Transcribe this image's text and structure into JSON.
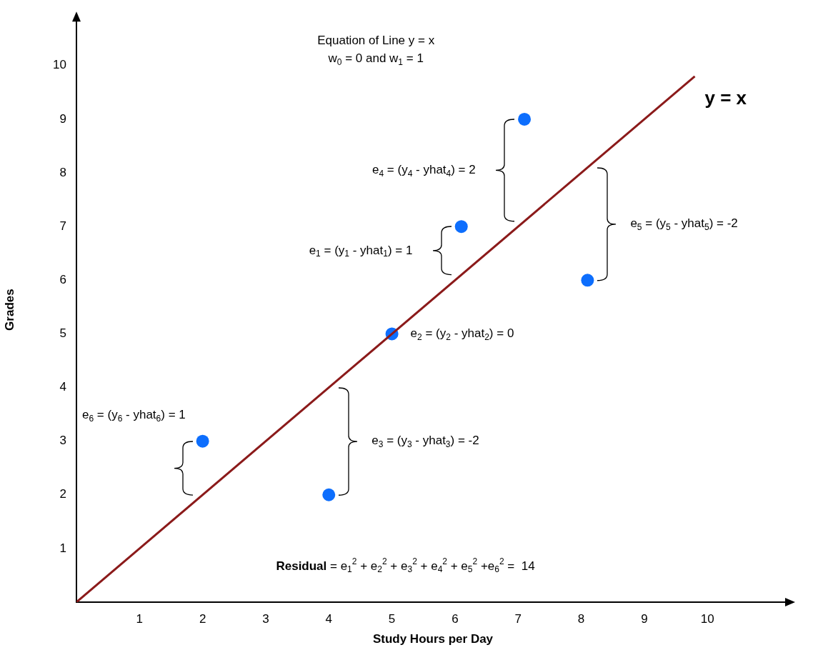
{
  "chart_data": {
    "type": "scatter",
    "title": "Equation of Line y = x",
    "subtitle": "w$_{0}$ = 0 and w$_{1}$ = 1",
    "xlabel": "Study Hours per Day",
    "ylabel": "Grades",
    "xlim": [
      0,
      11.3
    ],
    "ylim": [
      0,
      10.9
    ],
    "xticks": [
      1,
      2,
      3,
      4,
      5,
      6,
      7,
      8,
      9,
      10
    ],
    "yticks": [
      1,
      2,
      3,
      4,
      5,
      6,
      7,
      8,
      9,
      10
    ],
    "grid": false,
    "legend": false,
    "series": [
      {
        "name": "y = x",
        "type": "line",
        "x": [
          0,
          9.8
        ],
        "values": [
          0,
          9.8
        ],
        "color": "#8b1a1a",
        "line_style": "solid"
      },
      {
        "x": [
          6.1,
          5,
          4,
          7.1,
          8.1,
          2
        ],
        "values": [
          7,
          5,
          2,
          9,
          6,
          3
        ],
        "color": "#0d6efd",
        "marker": "circle"
      }
    ],
    "annotations": [
      "e$_{1}$ = (y$_{1}$ - yhat$_{1}$) = 1",
      "e$_{2}$ = (y$_{2}$ - yhat$_{2}$) = 0",
      "e$_{3}$ = (y$_{3}$ - yhat$_{3}$) = -2",
      "e$_{4}$ = (y$_{4}$ - yhat$_{4}$) = 2",
      "e$_{5}$ = (y$_{5}$ - yhat$_{5}$) = -2",
      "e$_{6}$ = (y$_{6}$ - yhat$_{6}$) = 1",
      "Residual = e$_{1}$$^{2}$ + e$_{2}$$^{2}$ + e$_{3}$$^{2}$ + e$_{4}$$^{2}$ + e$_{5}$$^{2}$ +e$_{6}$$^{2}$ =  14"
    ]
  }
}
